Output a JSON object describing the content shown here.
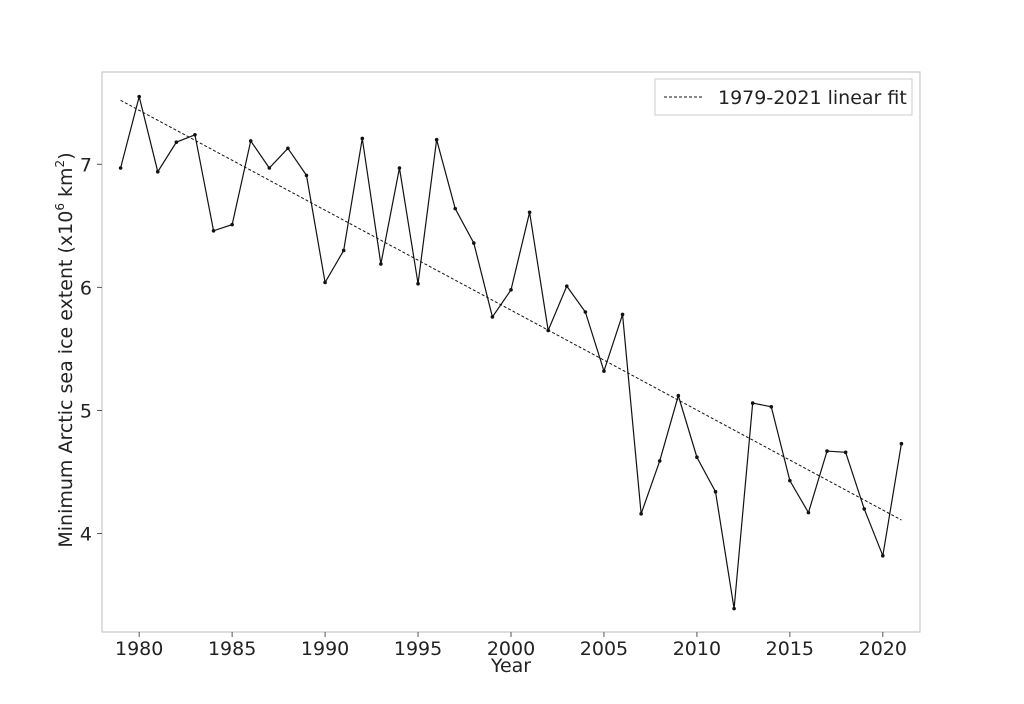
{
  "chart_data": {
    "type": "line",
    "xlabel": "Year",
    "ylabel_main": "Minimum Arctic sea ice extent (x10",
    "ylabel_sup1": "6",
    "ylabel_mid": " km",
    "ylabel_sup2": "2",
    "ylabel_end": ")",
    "xlim": [
      1978.0,
      2022.0
    ],
    "ylim": [
      3.2,
      7.75
    ],
    "xticks": [
      1980,
      1985,
      1990,
      1995,
      2000,
      2005,
      2010,
      2015,
      2020
    ],
    "yticks": [
      4,
      5,
      6,
      7
    ],
    "grid": false,
    "legend_position": "top-right",
    "series": [
      {
        "x": [
          1979,
          1980,
          1981,
          1982,
          1983,
          1984,
          1985,
          1986,
          1987,
          1988,
          1989,
          1990,
          1991,
          1992,
          1993,
          1994,
          1995,
          1996,
          1997,
          1998,
          1999,
          2000,
          2001,
          2002,
          2003,
          2004,
          2005,
          2006,
          2007,
          2008,
          2009,
          2010,
          2011,
          2012,
          2013,
          2014,
          2015,
          2016,
          2017,
          2018,
          2019,
          2020,
          2021
        ],
        "y": [
          6.97,
          7.55,
          6.94,
          7.18,
          7.24,
          6.46,
          6.51,
          7.19,
          6.97,
          7.13,
          6.91,
          6.04,
          6.3,
          7.21,
          6.19,
          6.97,
          6.03,
          7.2,
          6.64,
          6.36,
          5.76,
          5.98,
          6.61,
          5.65,
          6.01,
          5.8,
          5.32,
          5.78,
          4.16,
          4.59,
          5.12,
          4.62,
          4.34,
          3.39,
          5.06,
          5.03,
          4.43,
          4.17,
          4.67,
          4.66,
          4.2,
          3.82,
          4.73
        ],
        "color": "#111111"
      },
      {
        "name": "1979-2021 linear fit",
        "style": "dashed",
        "x": [
          1979,
          2021
        ],
        "y": [
          7.52,
          4.11
        ],
        "color": "#111111"
      }
    ]
  }
}
